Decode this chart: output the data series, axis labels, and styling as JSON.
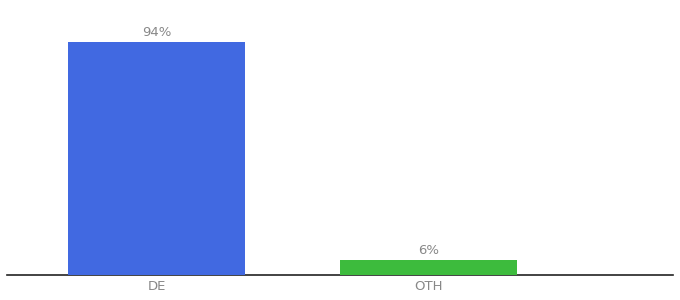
{
  "categories": [
    "DE",
    "OTH"
  ],
  "values": [
    94,
    6
  ],
  "bar_colors": [
    "#4169e1",
    "#3dbb3d"
  ],
  "label_texts": [
    "94%",
    "6%"
  ],
  "background_color": "#ffffff",
  "text_color": "#888888",
  "ylim": [
    0,
    108
  ],
  "bar_width": 0.65,
  "label_fontsize": 9.5,
  "tick_fontsize": 9.5,
  "xlim": [
    -0.55,
    1.9
  ],
  "spine_color": "#222222"
}
